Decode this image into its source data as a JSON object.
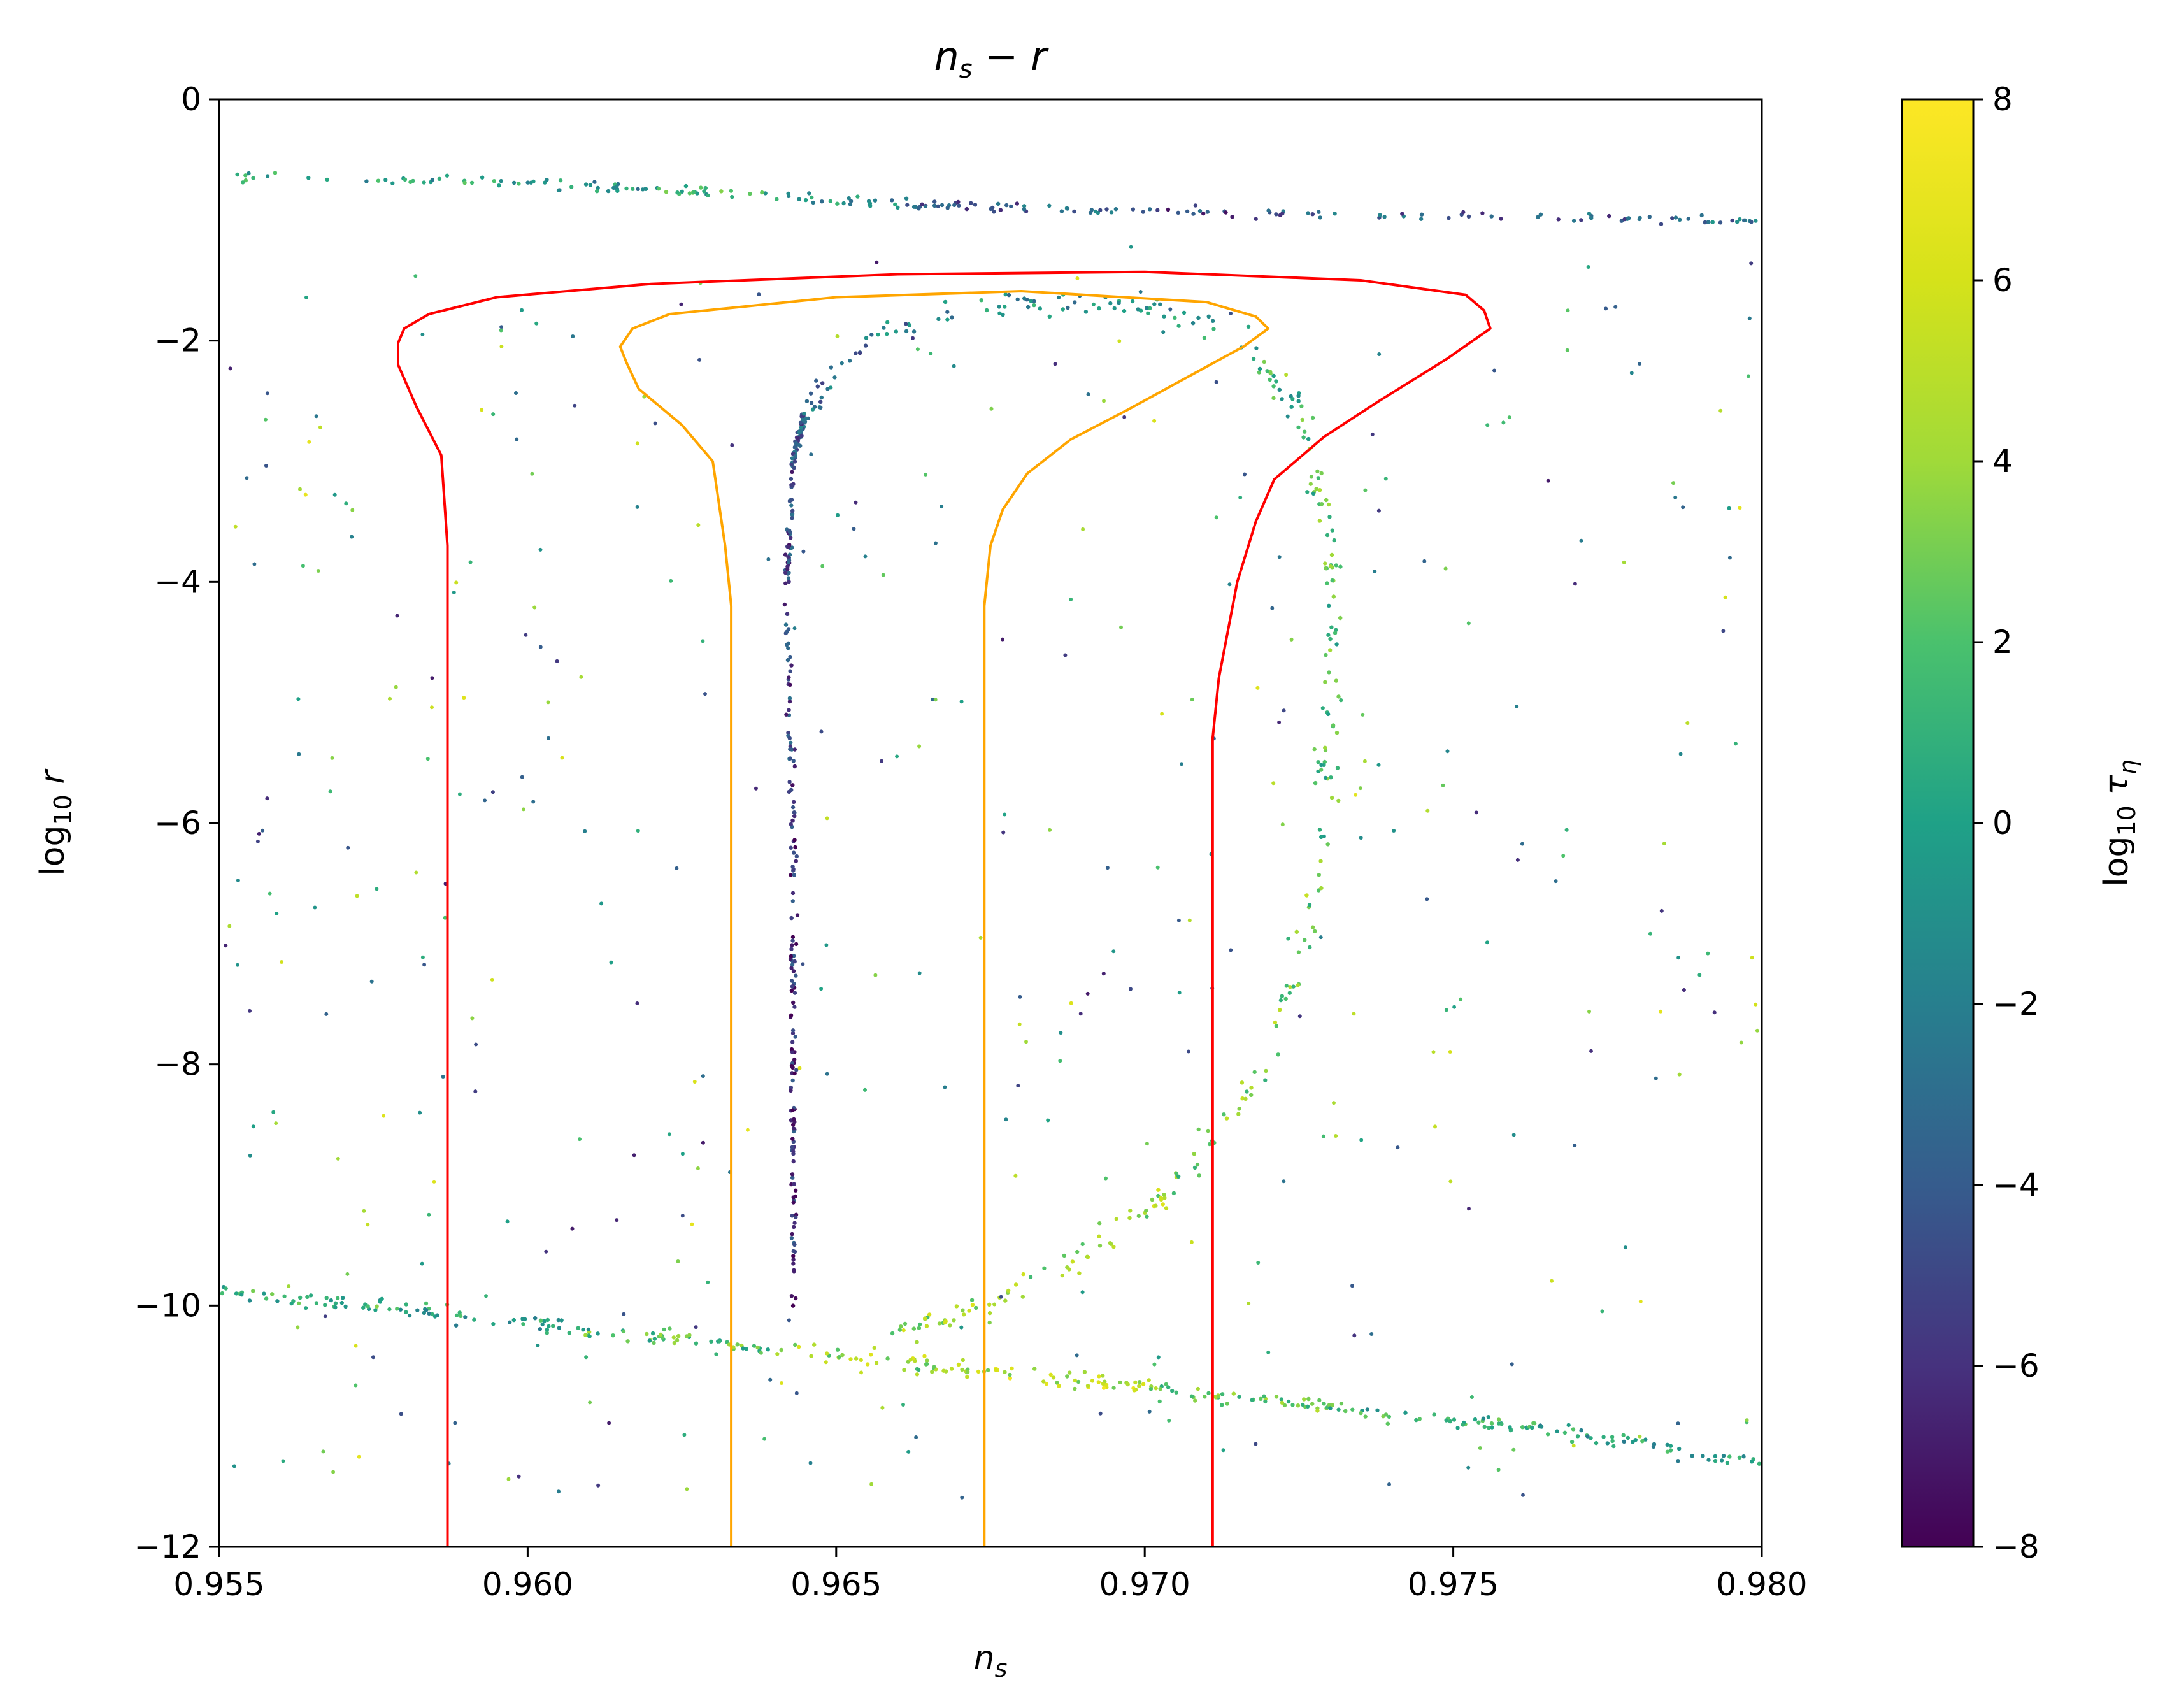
{
  "chart_data": {
    "type": "scatter",
    "title": "n_s − r",
    "xlabel": "n_s",
    "ylabel": "log10 r",
    "xlim": [
      0.955,
      0.98
    ],
    "ylim": [
      -12,
      0
    ],
    "xticks": [
      "0.955",
      "0.960",
      "0.965",
      "0.970",
      "0.975",
      "0.980"
    ],
    "yticks": [
      "0",
      "−2",
      "−4",
      "−6",
      "−8",
      "−10",
      "−12"
    ],
    "grid": false,
    "colorbar": {
      "label": "log10 τ_η",
      "colormap": "viridis",
      "range": [
        -8,
        8
      ],
      "ticks": [
        "8",
        "6",
        "4",
        "2",
        "0",
        "−2",
        "−4",
        "−6",
        "−8"
      ]
    },
    "contours": [
      {
        "color": "#ff0000",
        "points": [
          [
            0.9587,
            -12
          ],
          [
            0.9587,
            -3.7
          ],
          [
            0.9586,
            -2.95
          ],
          [
            0.9582,
            -2.55
          ],
          [
            0.9579,
            -2.2
          ],
          [
            0.9579,
            -2.02
          ],
          [
            0.958,
            -1.9
          ],
          [
            0.9584,
            -1.78
          ],
          [
            0.9595,
            -1.64
          ],
          [
            0.962,
            -1.53
          ],
          [
            0.966,
            -1.45
          ],
          [
            0.97,
            -1.43
          ],
          [
            0.9735,
            -1.5
          ],
          [
            0.9752,
            -1.62
          ],
          [
            0.9755,
            -1.75
          ],
          [
            0.9756,
            -1.9
          ],
          [
            0.9749,
            -2.15
          ],
          [
            0.9738,
            -2.5
          ],
          [
            0.9729,
            -2.8
          ],
          [
            0.9721,
            -3.15
          ],
          [
            0.9718,
            -3.5
          ],
          [
            0.9715,
            -4.0
          ],
          [
            0.9712,
            -4.8
          ],
          [
            0.9711,
            -5.3
          ],
          [
            0.9711,
            -12
          ]
        ]
      },
      {
        "color": "#ffa500",
        "points": [
          [
            0.9633,
            -12
          ],
          [
            0.9633,
            -4.2
          ],
          [
            0.9632,
            -3.7
          ],
          [
            0.963,
            -3.0
          ],
          [
            0.9625,
            -2.7
          ],
          [
            0.9618,
            -2.4
          ],
          [
            0.9616,
            -2.18
          ],
          [
            0.9615,
            -2.05
          ],
          [
            0.9617,
            -1.9
          ],
          [
            0.9623,
            -1.78
          ],
          [
            0.965,
            -1.64
          ],
          [
            0.968,
            -1.59
          ],
          [
            0.971,
            -1.68
          ],
          [
            0.9718,
            -1.8
          ],
          [
            0.972,
            -1.9
          ],
          [
            0.9716,
            -2.05
          ],
          [
            0.9707,
            -2.3
          ],
          [
            0.9697,
            -2.58
          ],
          [
            0.9688,
            -2.82
          ],
          [
            0.9681,
            -3.1
          ],
          [
            0.9677,
            -3.4
          ],
          [
            0.9675,
            -3.7
          ],
          [
            0.9674,
            -4.2
          ],
          [
            0.9674,
            -12
          ]
        ]
      }
    ],
    "scatter_structures": [
      {
        "name": "upper band",
        "x": [
          0.955,
          0.957,
          0.96,
          0.962,
          0.964,
          0.966,
          0.968,
          0.97,
          0.972,
          0.975,
          0.978,
          0.98
        ],
        "y": [
          -0.62,
          -0.66,
          -0.7,
          -0.74,
          -0.8,
          -0.86,
          -0.9,
          -0.92,
          -0.94,
          -0.97,
          -0.99,
          -1.0
        ],
        "log10_tau_eta": [
          1,
          0,
          -1,
          1,
          -1,
          -4,
          -3,
          -5,
          -4,
          -4,
          -3,
          -3
        ]
      },
      {
        "name": "lower band",
        "x": [
          0.955,
          0.958,
          0.961,
          0.964,
          0.967,
          0.97,
          0.973,
          0.976,
          0.98
        ],
        "y": [
          -9.88,
          -10.04,
          -10.2,
          -10.36,
          -10.52,
          -10.68,
          -10.84,
          -11.0,
          -11.3
        ],
        "log10_tau_eta": [
          1,
          0,
          2,
          4,
          5,
          3,
          1,
          0,
          2
        ]
      },
      {
        "name": "vertical band",
        "x": [
          0.9643,
          0.9643,
          0.9643,
          0.9642,
          0.9643,
          0.9645
        ],
        "y": [
          -10.0,
          -8.0,
          -6.0,
          -4.0,
          -3.0,
          -2.6
        ],
        "log10_tau_eta": [
          -6,
          -6,
          -5,
          -5,
          -4,
          -3
        ]
      },
      {
        "name": "arc",
        "x": [
          0.9645,
          0.9655,
          0.9672,
          0.9695,
          0.9715,
          0.9725,
          0.973,
          0.973,
          0.9728,
          0.972,
          0.9705,
          0.969,
          0.9675,
          0.966
        ],
        "y": [
          -2.6,
          -2.0,
          -1.7,
          -1.65,
          -1.9,
          -2.6,
          -3.5,
          -5.0,
          -6.5,
          -8.0,
          -9.0,
          -9.6,
          -10.0,
          -10.2
        ],
        "log10_tau_eta": [
          -3,
          -2,
          -1,
          0,
          1,
          2,
          2,
          2,
          3,
          3,
          4,
          4,
          4,
          5
        ]
      }
    ]
  }
}
